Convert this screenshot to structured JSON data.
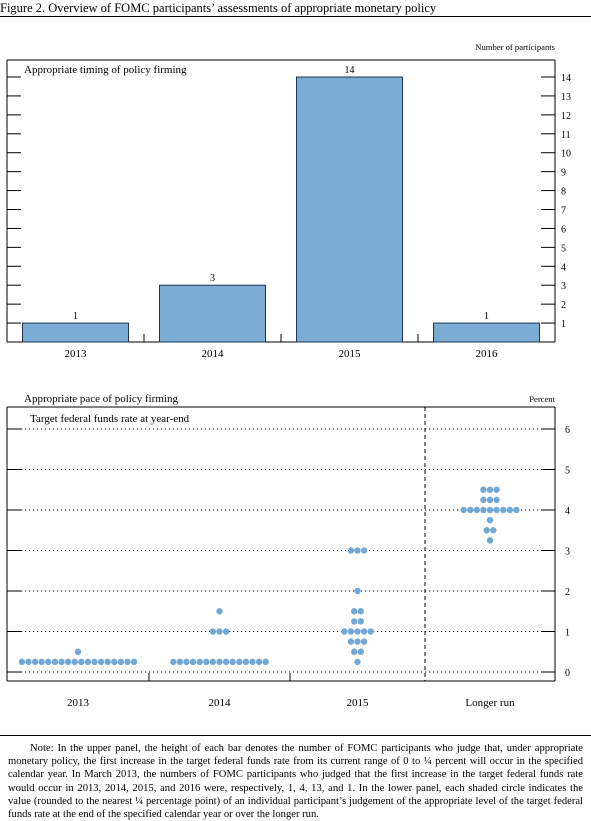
{
  "figure_title": "Figure 2. Overview of FOMC participants’ assessments of appropriate monetary policy",
  "note": "Note: In the upper panel, the height of each bar denotes the number of FOMC participants who judge that, under appropriate monetary policy, the first increase in the target federal funds rate from its current range of 0 to ¼ percent will occur in the specified calendar year. In March 2013, the numbers of FOMC participants who judged that the first increase in the target federal funds rate would occur in 2013, 2014, 2015, and 2016 were, respectively, 1, 4, 13, and 1. In the lower panel, each shaded circle indicates the value (rounded to the nearest ¼ percentage point) of an individual participant’s judgement of the appropriate level of the target federal funds rate at the end of the specified calendar year or over the longer run.",
  "colors": {
    "bar_fill": "#7aabd3",
    "bar_stroke": "#1e3552",
    "dot_fill": "#74a8d4"
  },
  "chart_data": [
    {
      "type": "bar",
      "title": "Appropriate timing of policy firming",
      "unit_label": "Number of participants",
      "categories": [
        "2013",
        "2014",
        "2015",
        "2016"
      ],
      "values": [
        1,
        3,
        14,
        1
      ],
      "data_labels": [
        "1",
        "3",
        "14",
        "1"
      ],
      "ylim": [
        0,
        14
      ],
      "y_ticks": [
        "1",
        "2",
        "3",
        "4",
        "5",
        "6",
        "7",
        "8",
        "9",
        "10",
        "11",
        "12",
        "13",
        "14"
      ]
    },
    {
      "type": "scatter",
      "title": "Appropriate pace of policy firming",
      "subtitle": "Target federal funds rate at year-end",
      "unit_label": "Percent",
      "categories": [
        "2013",
        "2014",
        "2015",
        "Longer run"
      ],
      "ylim": [
        0,
        6
      ],
      "y_ticks": [
        "0",
        "1",
        "2",
        "3",
        "4",
        "5",
        "6"
      ],
      "grid": "dotted horizontal",
      "series": [
        {
          "category": "2013",
          "values": [
            0.25,
            0.25,
            0.25,
            0.25,
            0.25,
            0.25,
            0.25,
            0.25,
            0.25,
            0.25,
            0.25,
            0.25,
            0.25,
            0.25,
            0.25,
            0.25,
            0.25,
            0.25,
            0.5
          ]
        },
        {
          "category": "2014",
          "values": [
            0.25,
            0.25,
            0.25,
            0.25,
            0.25,
            0.25,
            0.25,
            0.25,
            0.25,
            0.25,
            0.25,
            0.25,
            0.25,
            0.25,
            0.25,
            1.0,
            1.0,
            1.0,
            1.5
          ]
        },
        {
          "category": "2015",
          "values": [
            0.25,
            0.5,
            0.5,
            0.75,
            0.75,
            0.75,
            1.0,
            1.0,
            1.0,
            1.0,
            1.0,
            1.25,
            1.25,
            1.5,
            1.5,
            2.0,
            3.0,
            3.0,
            3.0
          ]
        },
        {
          "category": "Longer run",
          "values": [
            3.25,
            3.5,
            3.5,
            3.75,
            4.0,
            4.0,
            4.0,
            4.0,
            4.0,
            4.0,
            4.0,
            4.0,
            4.0,
            4.25,
            4.25,
            4.25,
            4.5,
            4.5,
            4.5
          ]
        }
      ]
    }
  ]
}
